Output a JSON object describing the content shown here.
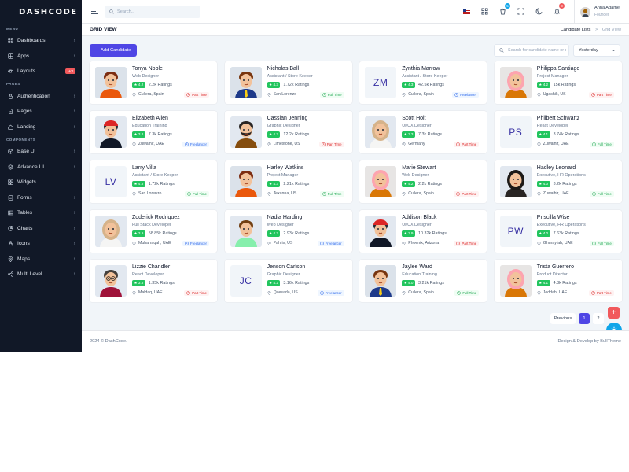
{
  "brand": {
    "logo": "DASHCODE"
  },
  "sidebar": {
    "sections": [
      {
        "title": "MENU",
        "items": [
          {
            "label": "Dashboards",
            "icon": "grid-icon",
            "chevron": true
          },
          {
            "label": "Apps",
            "icon": "apps-icon",
            "chevron": true
          },
          {
            "label": "Layouts",
            "icon": "eye-icon",
            "badge": "Hot"
          }
        ]
      },
      {
        "title": "PAGES",
        "items": [
          {
            "label": "Authentication",
            "icon": "lock-icon",
            "chevron": true
          },
          {
            "label": "Pages",
            "icon": "file-icon",
            "chevron": true
          },
          {
            "label": "Landing",
            "icon": "home-icon",
            "chevron": true
          }
        ]
      },
      {
        "title": "COMPONENTS",
        "items": [
          {
            "label": "Base UI",
            "icon": "box-icon",
            "chevron": true
          },
          {
            "label": "Advance UI",
            "icon": "layers-icon",
            "chevron": true
          },
          {
            "label": "Widgets",
            "icon": "widget-icon",
            "chevron": false
          },
          {
            "label": "Forms",
            "icon": "form-icon",
            "chevron": true
          },
          {
            "label": "Tables",
            "icon": "table-icon",
            "chevron": true
          },
          {
            "label": "Charts",
            "icon": "chart-icon",
            "chevron": true
          },
          {
            "label": "Icons",
            "icon": "person-icon",
            "chevron": true
          },
          {
            "label": "Maps",
            "icon": "map-pin-icon",
            "chevron": true
          },
          {
            "label": "Multi Level",
            "icon": "share-icon",
            "chevron": true
          }
        ]
      }
    ]
  },
  "header": {
    "search_placeholder": "Search...",
    "cart_badge": "5",
    "notif_badge": "3",
    "user": {
      "name": "Anna Adame",
      "role": "Founder"
    }
  },
  "page": {
    "title": "GRID VIEW",
    "crumb_parent": "Candidate Lists",
    "crumb_sep": ">",
    "crumb_current": "Grid View"
  },
  "toolbar": {
    "add_label": "Add Candidate",
    "add_plus": "+",
    "search_placeholder": "Search for candidate name or designation...",
    "filter": "Yesterday"
  },
  "candidates": [
    {
      "name": "Tonya Noble",
      "role": "Web Designer",
      "rating": "4.2",
      "ratings": "2.2k Ratings",
      "location": "Cullera, Spain",
      "type": "Part Time",
      "kind": "part",
      "avatar": "orange"
    },
    {
      "name": "Nicholas Ball",
      "role": "Assistant / Store Keeper",
      "rating": "4.3",
      "ratings": "1.72k Ratings",
      "location": "San Lorenzo",
      "type": "Full Time",
      "kind": "full",
      "avatar": "yellow-suit"
    },
    {
      "name": "Zynthia Marrow",
      "role": "Assistant / Store Keeper",
      "rating": "4.3",
      "ratings": "42.5k Ratings",
      "location": "Cullera, Spain",
      "type": "Freelancer",
      "kind": "free",
      "initials": "ZM"
    },
    {
      "name": "Philippa Santiago",
      "role": "Project Manager",
      "rating": "4.2",
      "ratings": "15k Ratings",
      "location": "Ugashik, US",
      "type": "Part Time",
      "kind": "part",
      "avatar": "pink-hood"
    },
    {
      "name": "Elizabeth Allen",
      "role": "Education Training",
      "rating": "3.8",
      "ratings": "7.3k Ratings",
      "location": "Zuwaihir, UAE",
      "type": "Freelancer",
      "kind": "free",
      "avatar": "red-cap"
    },
    {
      "name": "Cassian Jenning",
      "role": "Graphic Designer",
      "rating": "4.2",
      "ratings": "12.2k Ratings",
      "location": "Limestone, US",
      "type": "Part Time",
      "kind": "part",
      "avatar": "beard"
    },
    {
      "name": "Scott Holt",
      "role": "UI/UX Designer",
      "rating": "3.3",
      "ratings": "7.3k Ratings",
      "location": "Germany",
      "type": "Part Time",
      "kind": "part",
      "avatar": "hijab-beige"
    },
    {
      "name": "Philbert Schwartz",
      "role": "React Developer",
      "rating": "4.1",
      "ratings": "3.74k Ratings",
      "location": "Zuwaihir, UAE",
      "type": "Full Time",
      "kind": "full",
      "initials": "PS"
    },
    {
      "name": "Larry Villa",
      "role": "Assistant / Store Keeper",
      "rating": "4.8",
      "ratings": "1.72k Ratings",
      "location": "San Lorenzo",
      "type": "Full Time",
      "kind": "full",
      "initials": "LV"
    },
    {
      "name": "Harley Watkins",
      "role": "Project Manager",
      "rating": "4.3",
      "ratings": "2.21k Ratings",
      "location": "Texanna, US",
      "type": "Full Time",
      "kind": "full",
      "avatar": "orange"
    },
    {
      "name": "Marie Stewart",
      "role": "Web Designer",
      "rating": "4.2",
      "ratings": "2.2k Ratings",
      "location": "Cullera, Spain",
      "type": "Part Time",
      "kind": "part",
      "avatar": "pink-hood"
    },
    {
      "name": "Hadley Leonard",
      "role": "Executive, HR Operations",
      "rating": "4.0",
      "ratings": "3.2k Ratings",
      "location": "Zuwaihir, UAE",
      "type": "Full Time",
      "kind": "full",
      "avatar": "hijab-dark"
    },
    {
      "name": "Zoderick Rodriquez",
      "role": "Full Stack Developer",
      "rating": "3.9",
      "ratings": "58.85k Ratings",
      "location": "Muharraqah, UAE",
      "type": "Freelancer",
      "kind": "free",
      "avatar": "hijab-beige"
    },
    {
      "name": "Nadia Harding",
      "role": "Web Designer",
      "rating": "4.2",
      "ratings": "2.93k Ratings",
      "location": "Pahrix, US",
      "type": "Freelancer",
      "kind": "free",
      "avatar": "green"
    },
    {
      "name": "Addison Black",
      "role": "UI/UX Designer",
      "rating": "3.9",
      "ratings": "10.32k Ratings",
      "location": "Phoenix, Arizona",
      "type": "Part Time",
      "kind": "part",
      "avatar": "red-cap"
    },
    {
      "name": "Priscilla Wise",
      "role": "Executive, HR Operations",
      "rating": "4.0",
      "ratings": "7.63k Ratings",
      "location": "Ghurayfah, UAE",
      "type": "Full Time",
      "kind": "full",
      "initials": "PW"
    },
    {
      "name": "Lizzie Chandler",
      "role": "React Developer",
      "rating": "3.8",
      "ratings": "1.35k Ratings",
      "location": "Maldaq, UAE",
      "type": "Part Time",
      "kind": "part",
      "avatar": "glasses"
    },
    {
      "name": "Jenson Carlson",
      "role": "Graphic Designer",
      "rating": "4.2",
      "ratings": "3.16k Ratings",
      "location": "Quesada, US",
      "type": "Freelancer",
      "kind": "free",
      "initials": "JC"
    },
    {
      "name": "Jaylee Ward",
      "role": "Education Training",
      "rating": "4.0",
      "ratings": "3.21k Ratings",
      "location": "Cullera, Spain",
      "type": "Full Time",
      "kind": "full",
      "avatar": "yellow-suit"
    },
    {
      "name": "Trista Guerrero",
      "role": "Product Director",
      "rating": "4.1",
      "ratings": "4.3k Ratings",
      "location": "Jeddah, UAE",
      "type": "Part Time",
      "kind": "part",
      "avatar": "pink-hood"
    }
  ],
  "pagination": {
    "prev": "Previous",
    "pages": [
      "1",
      "2"
    ]
  },
  "fab": {
    "add": "+"
  },
  "footer": {
    "left": "2024 © DashCode.",
    "right": "Design & Develop by BullTheme"
  },
  "colors": {
    "primary": "#4f46e5",
    "danger": "#f1595c",
    "info": "#0ea5e9",
    "sidebar": "#111827",
    "star": "#22c55e"
  }
}
